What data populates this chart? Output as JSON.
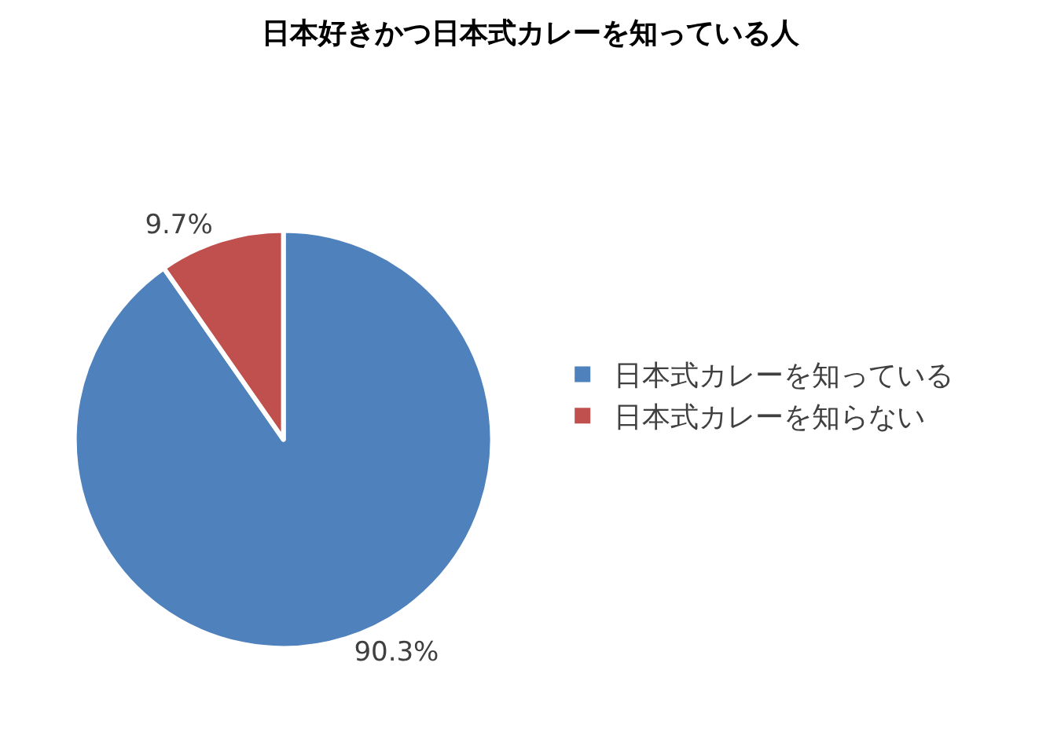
{
  "chart_data": {
    "type": "pie",
    "title": "日本好きかつ日本式カレーを知っている人",
    "categories": [
      "日本式カレーを知っている",
      "日本式カレーを知らない"
    ],
    "values": [
      90.3,
      9.7
    ],
    "colors": [
      "#4f81bd",
      "#c0504d"
    ],
    "value_labels": [
      "90.3%",
      "9.7%"
    ],
    "legend": "right"
  }
}
